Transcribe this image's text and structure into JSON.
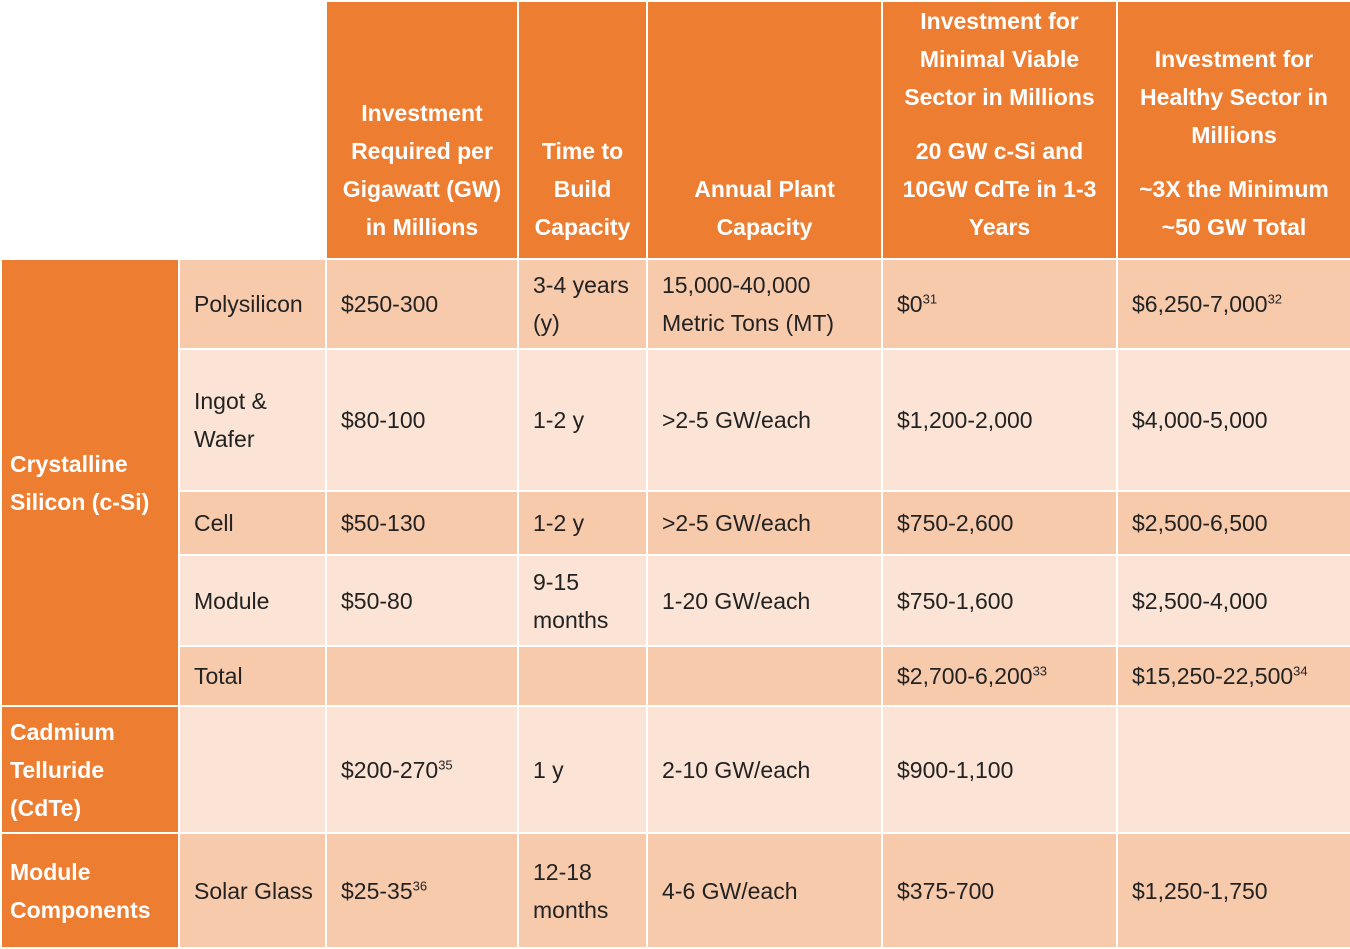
{
  "headers": [
    "",
    "",
    "Investment Required per Gigawatt (GW) in Millions",
    "Time to Build Capacity",
    "Annual Plant Capacity",
    "Investment for Minimal Viable Sector in Millions",
    "Investment for Healthy Sector in Millions"
  ],
  "header_notes": {
    "minimal": "20 GW c-Si and 10GW CdTe in 1-3 Years",
    "healthy": "~3X the Minimum ~50 GW Total"
  },
  "categories": {
    "csi": "Crystalline Silicon (c-Si)",
    "cdte": "Cadmium Telluride (CdTe)",
    "module": "Module Components"
  },
  "rows": [
    {
      "sub": "Polysilicon",
      "invest": "$250-300",
      "invest_sup": "",
      "time": "3-4 years (y)",
      "capacity": "15,000-40,000 Metric Tons (MT)",
      "minimal": "$0",
      "minimal_sup": "31",
      "healthy": "$6,250-7,000",
      "healthy_sup": "32"
    },
    {
      "sub": "Ingot & Wafer",
      "invest": "$80-100",
      "invest_sup": "",
      "time": "1-2 y",
      "capacity": ">2-5 GW/each",
      "minimal": "$1,200-2,000",
      "minimal_sup": "",
      "healthy": "$4,000-5,000",
      "healthy_sup": ""
    },
    {
      "sub": "Cell",
      "invest": "$50-130",
      "invest_sup": "",
      "time": "1-2 y",
      "capacity": ">2-5 GW/each",
      "minimal": "$750-2,600",
      "minimal_sup": "",
      "healthy": "$2,500-6,500",
      "healthy_sup": ""
    },
    {
      "sub": "Module",
      "invest": "$50-80",
      "invest_sup": "",
      "time": "9-15 months",
      "capacity": "1-20 GW/each",
      "minimal": "$750-1,600",
      "minimal_sup": "",
      "healthy": "$2,500-4,000",
      "healthy_sup": ""
    },
    {
      "sub": "Total",
      "invest": "",
      "invest_sup": "",
      "time": "",
      "capacity": "",
      "minimal": "$2,700-6,200",
      "minimal_sup": "33",
      "healthy": "$15,250-22,500",
      "healthy_sup": "34"
    },
    {
      "sub": "",
      "invest": "$200-270",
      "invest_sup": "35",
      "time": "1 y",
      "capacity": "2-10 GW/each",
      "minimal": "$900-1,100",
      "minimal_sup": "",
      "healthy": "",
      "healthy_sup": ""
    },
    {
      "sub": "Solar Glass",
      "invest": "$25-35",
      "invest_sup": "36",
      "time": "12-18 months",
      "capacity": "4-6 GW/each",
      "minimal": "$375-700",
      "minimal_sup": "",
      "healthy": "$1,250-1,750",
      "healthy_sup": ""
    }
  ],
  "colors": {
    "header_orange": "#ED7D31",
    "row_dark": "#F7CAAC",
    "row_light": "#FBE4D5",
    "text_white": "#FFFFFF"
  }
}
